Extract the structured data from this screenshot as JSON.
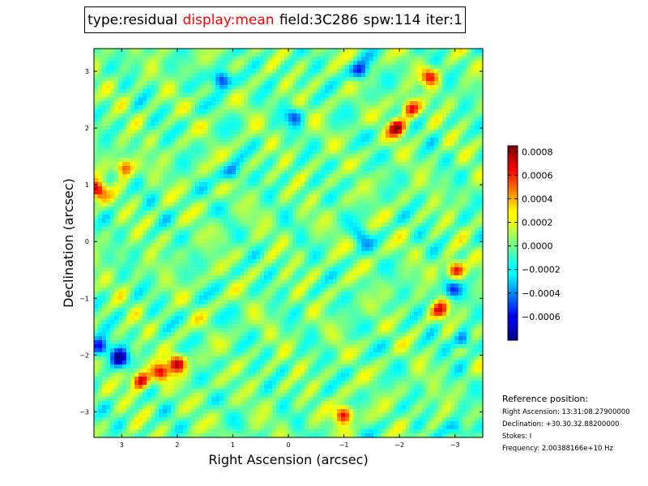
{
  "header": {
    "items": [
      {
        "text": "type:residual",
        "color": "#000000"
      },
      {
        "text": "display:mean",
        "color": "#ff0000"
      },
      {
        "text": "field:3C286",
        "color": "#000000"
      },
      {
        "text": "spw:114",
        "color": "#000000"
      },
      {
        "text": "iter:1",
        "color": "#000000"
      }
    ]
  },
  "chart_data": {
    "type": "heatmap",
    "title": "",
    "xlabel": "Right Ascension (arcsec)",
    "ylabel": "Declination (arcsec)",
    "xlim": [
      3.5,
      -3.5
    ],
    "ylim": [
      -3.45,
      3.4
    ],
    "xticks": [
      3,
      2,
      1,
      0,
      -1,
      -2,
      -3
    ],
    "xtick_labels": [
      "3",
      "2",
      "1",
      "0",
      "−1",
      "−2",
      "−3"
    ],
    "yticks": [
      3,
      2,
      1,
      0,
      -1,
      -2,
      -3
    ],
    "ytick_labels": [
      "3",
      "2",
      "1",
      "0",
      "−1",
      "−2",
      "−3"
    ],
    "colormap": "jet",
    "colorbar": {
      "min": -0.0008,
      "max": 0.00085,
      "ticks": [
        0.0008,
        0.0006,
        0.0004,
        0.0002,
        0.0,
        -0.0002,
        -0.0004,
        -0.0006
      ],
      "tick_labels": [
        "0.0008",
        "0.0006",
        "0.0004",
        "0.0002",
        "0.0000",
        "−0.0002",
        "−0.0004",
        "−0.0006"
      ]
    },
    "features": [
      {
        "x": 3.45,
        "y": 0.9,
        "value": 0.0008
      },
      {
        "x": 2.95,
        "y": 1.3,
        "value": 0.00065
      },
      {
        "x": 2.0,
        "y": -2.15,
        "value": 0.0008
      },
      {
        "x": 2.3,
        "y": -2.3,
        "value": 0.0007
      },
      {
        "x": 2.65,
        "y": -2.45,
        "value": 0.0008
      },
      {
        "x": 3.05,
        "y": -2.05,
        "value": -0.0008
      },
      {
        "x": 3.4,
        "y": -1.85,
        "value": -0.0007
      },
      {
        "x": -1.95,
        "y": 2.0,
        "value": 0.0008
      },
      {
        "x": -2.2,
        "y": 2.35,
        "value": 0.0007
      },
      {
        "x": -2.55,
        "y": 2.9,
        "value": 0.0006
      },
      {
        "x": -3.0,
        "y": -0.5,
        "value": 0.00075
      },
      {
        "x": -2.75,
        "y": -1.2,
        "value": 0.0006
      },
      {
        "x": -1.0,
        "y": -3.05,
        "value": 0.0008
      },
      {
        "x": 1.2,
        "y": 2.85,
        "value": -0.0007
      },
      {
        "x": -1.3,
        "y": 3.0,
        "value": -0.0006
      },
      {
        "x": -0.1,
        "y": 2.2,
        "value": -0.0004
      },
      {
        "x": -2.95,
        "y": -0.85,
        "value": -0.0006
      },
      {
        "x": -3.15,
        "y": -1.75,
        "value": -0.0005
      },
      {
        "x": -3.05,
        "y": -3.3,
        "value": -0.0004
      },
      {
        "x": 1.0,
        "y": 1.2,
        "value": -0.0004
      },
      {
        "x": -1.3,
        "y": 0.1,
        "value": -0.0003
      }
    ]
  },
  "reference_position": {
    "title": "Reference position:",
    "lines": [
      "Right Ascension: 13:31:08.27900000",
      "Declination: +30.30.32.88200000",
      "Stokes: I",
      "Frequency: 2.00388166e+10 Hz"
    ]
  }
}
